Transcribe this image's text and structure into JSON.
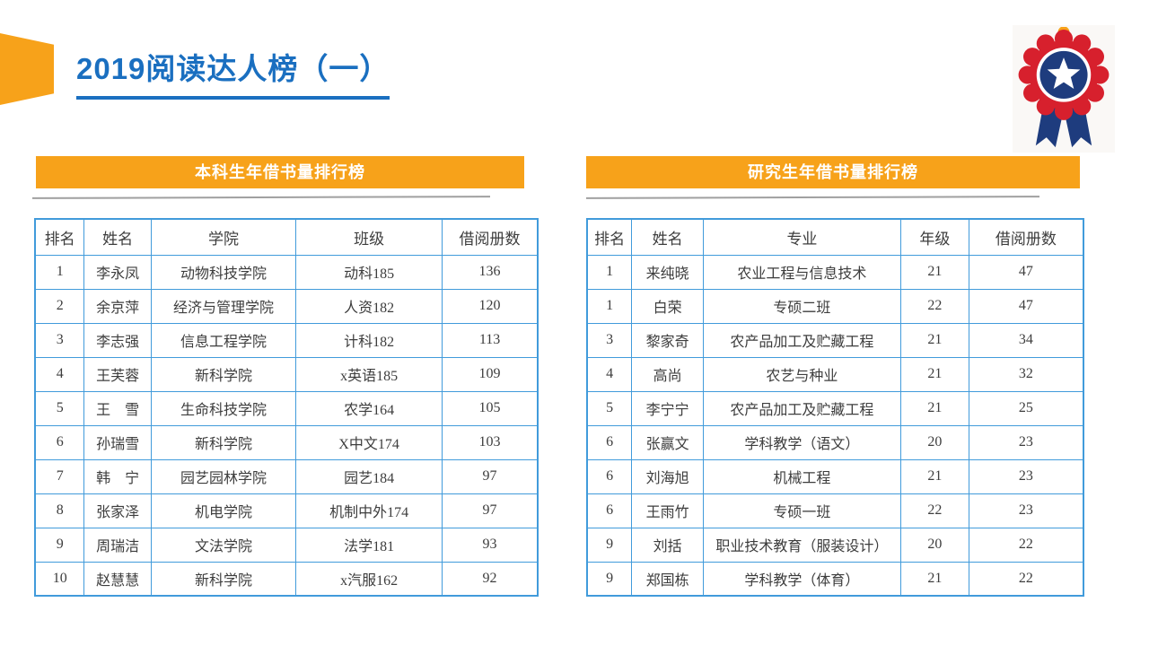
{
  "header": {
    "title": "2019阅读达人榜（一）"
  },
  "badge": {
    "icon": "award-rosette-medal",
    "inner_icon": "star-icon"
  },
  "colors": {
    "accent_orange": "#F7A21A",
    "title_blue": "#1A6FC0",
    "border_blue": "#419BDB",
    "badge_red": "#D7202D",
    "badge_navy": "#1E3C7E",
    "divider_gray": "#A0A0A0",
    "cell_text": "#3D3D3D"
  },
  "left_panel": {
    "banner": "本科生年借书量排行榜",
    "columns": [
      "排名",
      "姓名",
      "学院",
      "班级",
      "借阅册数"
    ],
    "rows": [
      [
        "1",
        "李永凤",
        "动物科技学院",
        "动科185",
        "136"
      ],
      [
        "2",
        "余京萍",
        "经济与管理学院",
        "人资182",
        "120"
      ],
      [
        "3",
        "李志强",
        "信息工程学院",
        "计科182",
        "113"
      ],
      [
        "4",
        "王芙蓉",
        "新科学院",
        "x英语185",
        "109"
      ],
      [
        "5",
        "王　雪",
        "生命科技学院",
        "农学164",
        "105"
      ],
      [
        "6",
        "孙瑞雪",
        "新科学院",
        "X中文174",
        "103"
      ],
      [
        "7",
        "韩　宁",
        "园艺园林学院",
        "园艺184",
        "97"
      ],
      [
        "8",
        "张家泽",
        "机电学院",
        "机制中外174",
        "97"
      ],
      [
        "9",
        "周瑞洁",
        "文法学院",
        "法学181",
        "93"
      ],
      [
        "10",
        "赵慧慧",
        "新科学院",
        "x汽服162",
        "92"
      ]
    ]
  },
  "right_panel": {
    "banner": "研究生年借书量排行榜",
    "columns": [
      "排名",
      "姓名",
      "专业",
      "年级",
      "借阅册数"
    ],
    "rows": [
      [
        "1",
        "来纯晓",
        "农业工程与信息技术",
        "21",
        "47"
      ],
      [
        "1",
        "白荣",
        "专硕二班",
        "22",
        "47"
      ],
      [
        "3",
        "黎家奇",
        "农产品加工及贮藏工程",
        "21",
        "34"
      ],
      [
        "4",
        "高尚",
        "农艺与种业",
        "21",
        "32"
      ],
      [
        "5",
        "李宁宁",
        "农产品加工及贮藏工程",
        "21",
        "25"
      ],
      [
        "6",
        "张赢文",
        "学科教学（语文）",
        "20",
        "23"
      ],
      [
        "6",
        "刘海旭",
        "机械工程",
        "21",
        "23"
      ],
      [
        "6",
        "王雨竹",
        "专硕一班",
        "22",
        "23"
      ],
      [
        "9",
        "刘括",
        "职业技术教育（服装设计）",
        "20",
        "22"
      ],
      [
        "9",
        "郑国栋",
        "学科教学（体育）",
        "21",
        "22"
      ]
    ]
  }
}
